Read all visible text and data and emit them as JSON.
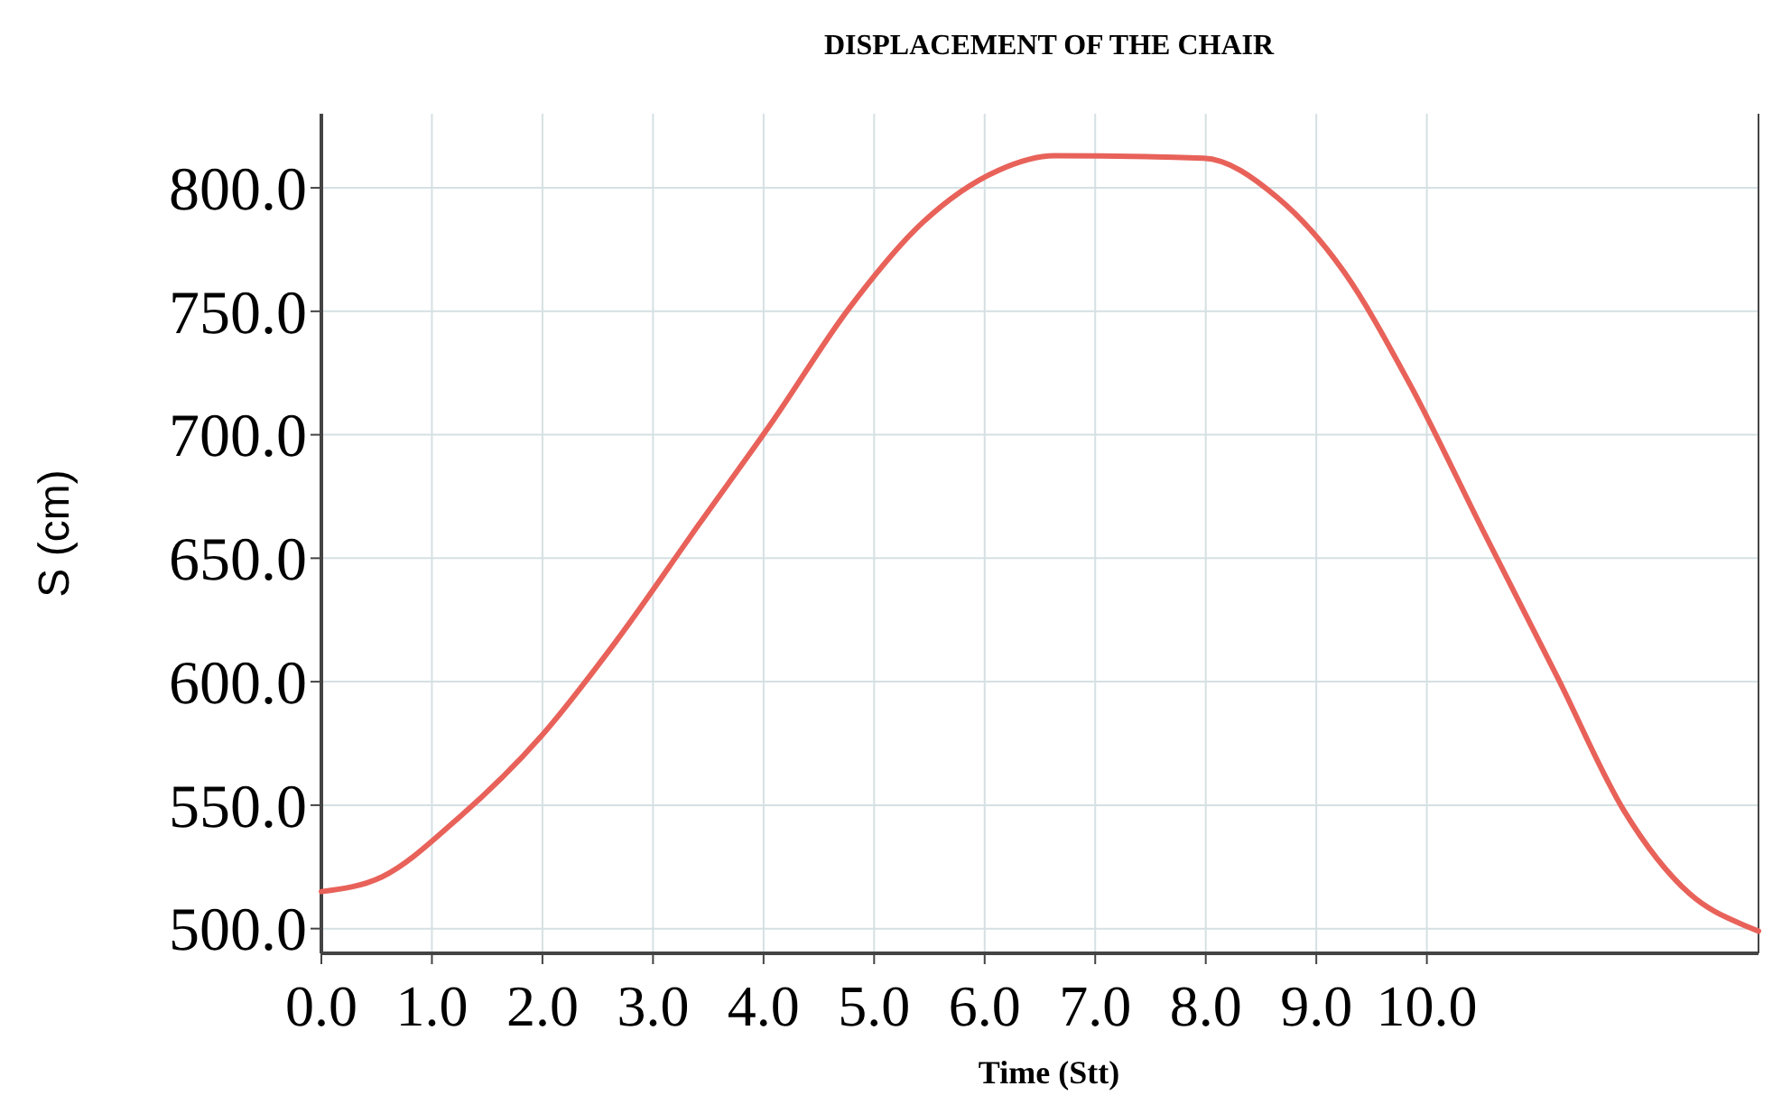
{
  "chart_data": {
    "type": "line",
    "title": "DISPLACEMENT OF THE CHAIR",
    "xlabel": "Time (Stt)",
    "ylabel": "S (cm)",
    "x": [
      0,
      0.55,
      1.22,
      1.99,
      2.66,
      3.42,
      4.09,
      4.77,
      5.44,
      6.12,
      6.63,
      7.98,
      8.65,
      9.25,
      9.84,
      10.51,
      11.19,
      11.78,
      12.38,
      12.89,
      13
    ],
    "series": [
      {
        "color": "#e8625a",
        "values": [
          515,
          521,
          544,
          578,
          616,
          664,
          706,
          751,
          786,
          807,
          813,
          812,
          796,
          766,
          721,
          661,
          601,
          548,
          514,
          501,
          499
        ]
      }
    ],
    "xlim": [
      0,
      13
    ],
    "ylim": [
      490,
      830
    ],
    "xticks": [
      {
        "value": 0,
        "label": "0.0"
      },
      {
        "value": 1,
        "label": "1.0"
      },
      {
        "value": 2,
        "label": "2.0"
      },
      {
        "value": 3,
        "label": "3.0"
      },
      {
        "value": 4,
        "label": "4.0"
      },
      {
        "value": 5,
        "label": "5.0"
      },
      {
        "value": 6,
        "label": "6.0"
      },
      {
        "value": 7,
        "label": "7.0"
      },
      {
        "value": 8,
        "label": "8.0"
      },
      {
        "value": 9,
        "label": "9.0"
      },
      {
        "value": 10,
        "label": "10.0"
      }
    ],
    "yticks": [
      {
        "value": 500,
        "label": "500.0"
      },
      {
        "value": 550,
        "label": "550.0"
      },
      {
        "value": 600,
        "label": "600.0"
      },
      {
        "value": 650,
        "label": "650.0"
      },
      {
        "value": 700,
        "label": "700.0"
      },
      {
        "value": 750,
        "label": "750.0"
      },
      {
        "value": 800,
        "label": "800.0"
      }
    ],
    "grid": true,
    "marker": "none",
    "line_style": "solid"
  }
}
